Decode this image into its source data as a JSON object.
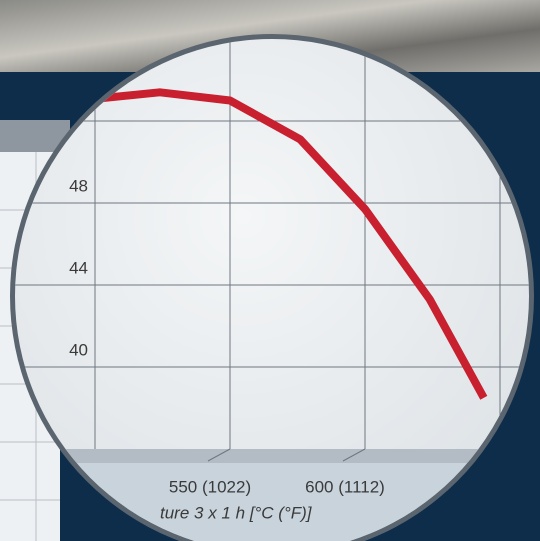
{
  "chart_data": {
    "type": "line",
    "x_label": "ture 3 x 1 h [°C (°F)]",
    "x": [
      494,
      524,
      550,
      576,
      600,
      624,
      644
    ],
    "series": [
      {
        "color": "#c8202f",
        "values": [
          53.0,
          53.4,
          53.0,
          51.1,
          47.7,
          43.3,
          38.5
        ]
      }
    ],
    "xlim": [
      500,
      650
    ],
    "xticks": [
      {
        "value": 550,
        "label": "550 (1022)"
      },
      {
        "value": 600,
        "label": "600 (1112)"
      }
    ],
    "ylim": [
      36,
      54
    ],
    "yticks": [
      40,
      44,
      48
    ],
    "grid": true
  }
}
